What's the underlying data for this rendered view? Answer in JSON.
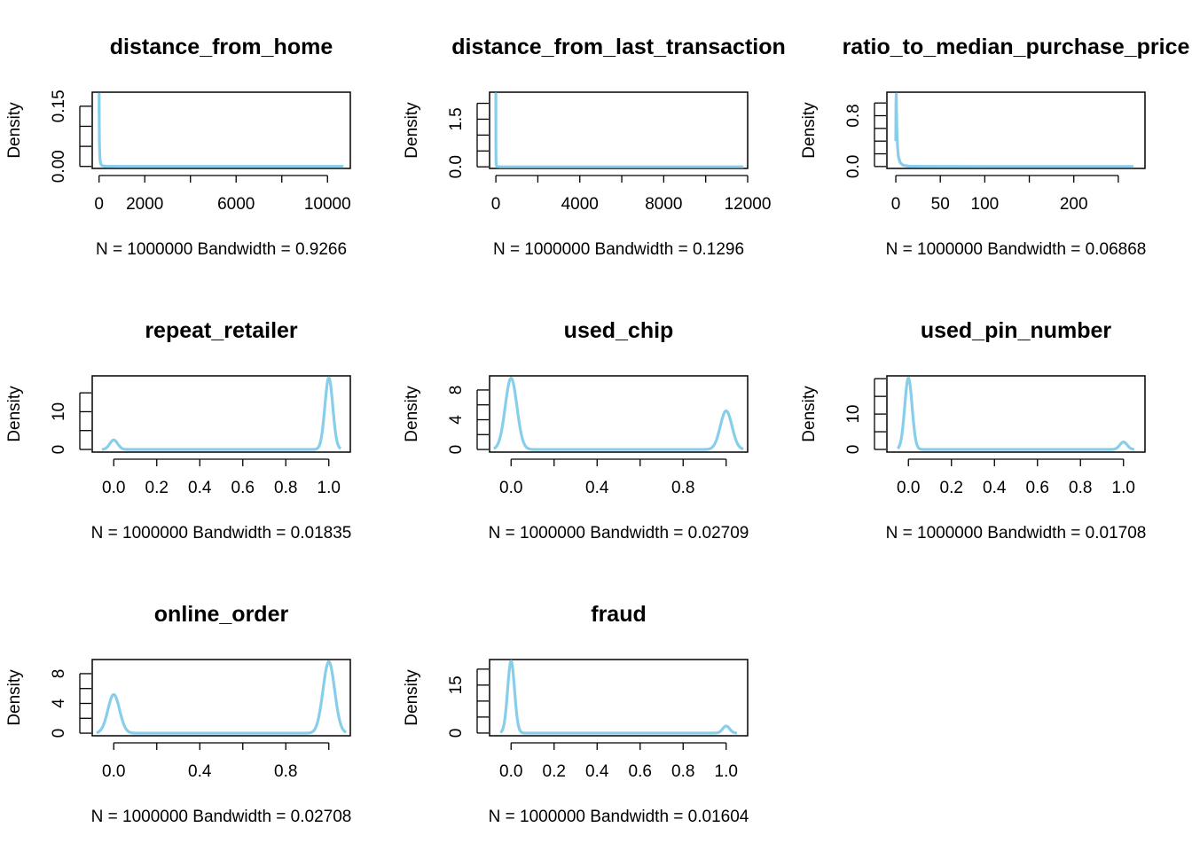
{
  "figure": {
    "curve_color": "#87CEEB",
    "panel_layout": "3x3 grid, 8 panels filled row-wise"
  },
  "chart_data": [
    {
      "type": "line",
      "title": "distance_from_home",
      "xlabel": "N = 1000000   Bandwidth = 0.9266",
      "ylabel": "Density",
      "xlim": [
        -300,
        11000
      ],
      "ylim": [
        -0.005,
        0.185
      ],
      "xticks": [
        0,
        2000,
        4000,
        6000,
        8000,
        10000
      ],
      "xtick_labels": [
        "0",
        "2000",
        "",
        "6000",
        "",
        "10000"
      ],
      "yticks": [
        0,
        0.05,
        0.1,
        0.15
      ],
      "ytick_labels": [
        "0.00",
        "",
        "",
        "0.15"
      ],
      "x": [
        0,
        2,
        4,
        8,
        15,
        25,
        40,
        70,
        120,
        300,
        1000,
        5000,
        10700
      ],
      "y": [
        0.13,
        0.18,
        0.17,
        0.11,
        0.06,
        0.035,
        0.018,
        0.007,
        0.002,
        0.0004,
        0,
        0,
        0
      ]
    },
    {
      "type": "line",
      "title": "distance_from_last_transaction",
      "xlabel": "N = 1000000   Bandwidth = 0.1296",
      "ylabel": "Density",
      "xlim": [
        -300,
        12000
      ],
      "ylim": [
        -0.05,
        2.35
      ],
      "xticks": [
        0,
        2000,
        4000,
        6000,
        8000,
        10000,
        12000
      ],
      "xtick_labels": [
        "0",
        "",
        "4000",
        "",
        "8000",
        "",
        "12000"
      ],
      "yticks": [
        0,
        0.5,
        1,
        1.5,
        2
      ],
      "ytick_labels": [
        "0.0",
        "",
        "",
        "1.5",
        ""
      ],
      "x": [
        0,
        0.3,
        0.6,
        1,
        2,
        4,
        8,
        15,
        40,
        200,
        2000,
        8000,
        11800
      ],
      "y": [
        1.8,
        2.3,
        2.2,
        1.6,
        0.9,
        0.45,
        0.2,
        0.07,
        0.01,
        0.001,
        0,
        0,
        0
      ]
    },
    {
      "type": "line",
      "title": "ratio_to_median_purchase_price",
      "xlabel": "N = 1000000   Bandwidth = 0.06868",
      "ylabel": "Density",
      "xlim": [
        -10,
        280
      ],
      "ylim": [
        -0.03,
        1.17
      ],
      "xticks": [
        0,
        50,
        100,
        150,
        200,
        250
      ],
      "xtick_labels": [
        "0",
        "50",
        "100",
        "",
        "200",
        ""
      ],
      "yticks": [
        0,
        0.2,
        0.4,
        0.6,
        0.8,
        1.0
      ],
      "ytick_labels": [
        "0.0",
        "",
        "",
        "",
        "0.8",
        ""
      ],
      "x": [
        0,
        0.2,
        0.5,
        0.8,
        1.2,
        2,
        3,
        5,
        8,
        15,
        30,
        100,
        267
      ],
      "y": [
        0.4,
        1.0,
        1.14,
        0.9,
        0.6,
        0.3,
        0.15,
        0.06,
        0.02,
        0.005,
        0.001,
        0,
        0
      ]
    },
    {
      "type": "line",
      "title": "repeat_retailer",
      "xlabel": "N = 1000000   Bandwidth = 0.01835",
      "ylabel": "Density",
      "xlim": [
        -0.1,
        1.1
      ],
      "ylim": [
        -0.7,
        19.5
      ],
      "xticks": [
        0,
        0.2,
        0.4,
        0.6,
        0.8,
        1.0
      ],
      "xtick_labels": [
        "0.0",
        "0.2",
        "0.4",
        "0.6",
        "0.8",
        "1.0"
      ],
      "yticks": [
        0,
        5,
        10,
        15
      ],
      "ytick_labels": [
        "0",
        "",
        "10",
        ""
      ],
      "peaks": [
        {
          "center": 0,
          "height": 2.5,
          "sigma": 0.01835
        },
        {
          "center": 1,
          "height": 19.0,
          "sigma": 0.01835
        }
      ],
      "x_range": [
        -0.055,
        1.055
      ]
    },
    {
      "type": "line",
      "title": "used_chip",
      "xlabel": "N = 1000000   Bandwidth = 0.02709",
      "ylabel": "Density",
      "xlim": [
        -0.1,
        1.1
      ],
      "ylim": [
        -0.35,
        9.9
      ],
      "xticks": [
        0,
        0.2,
        0.4,
        0.6,
        0.8,
        1.0
      ],
      "xtick_labels": [
        "0.0",
        "",
        "0.4",
        "",
        "0.8",
        ""
      ],
      "yticks": [
        0,
        2,
        4,
        6,
        8
      ],
      "ytick_labels": [
        "0",
        "",
        "4",
        "",
        "8"
      ],
      "peaks": [
        {
          "center": 0,
          "height": 9.6,
          "sigma": 0.02709
        },
        {
          "center": 1,
          "height": 5.2,
          "sigma": 0.02709
        }
      ],
      "x_range": [
        -0.08,
        1.08
      ]
    },
    {
      "type": "line",
      "title": "used_pin_number",
      "xlabel": "N = 1000000   Bandwidth = 0.01708",
      "ylabel": "Density",
      "xlim": [
        -0.1,
        1.1
      ],
      "ylim": [
        -0.75,
        20.8
      ],
      "xticks": [
        0,
        0.2,
        0.4,
        0.6,
        0.8,
        1.0
      ],
      "xtick_labels": [
        "0.0",
        "0.2",
        "0.4",
        "0.6",
        "0.8",
        "1.0"
      ],
      "yticks": [
        0,
        5,
        10,
        15,
        20
      ],
      "ytick_labels": [
        "0",
        "",
        "10",
        "",
        ""
      ],
      "peaks": [
        {
          "center": 0,
          "height": 20.2,
          "sigma": 0.01708
        },
        {
          "center": 1,
          "height": 2.1,
          "sigma": 0.01708
        }
      ],
      "x_range": [
        -0.05,
        1.05
      ]
    },
    {
      "type": "line",
      "title": "online_order",
      "xlabel": "N = 1000000   Bandwidth = 0.02708",
      "ylabel": "Density",
      "xlim": [
        -0.1,
        1.1
      ],
      "ylim": [
        -0.35,
        9.9
      ],
      "xticks": [
        0,
        0.2,
        0.4,
        0.6,
        0.8,
        1.0
      ],
      "xtick_labels": [
        "0.0",
        "",
        "0.4",
        "",
        "0.8",
        ""
      ],
      "yticks": [
        0,
        2,
        4,
        6,
        8
      ],
      "ytick_labels": [
        "0",
        "",
        "4",
        "",
        "8"
      ],
      "peaks": [
        {
          "center": 0,
          "height": 5.2,
          "sigma": 0.02708
        },
        {
          "center": 1,
          "height": 9.6,
          "sigma": 0.02708
        }
      ],
      "x_range": [
        -0.08,
        1.08
      ]
    },
    {
      "type": "line",
      "title": "fraud",
      "xlabel": "N = 1000000   Bandwidth = 0.01604",
      "ylabel": "Density",
      "xlim": [
        -0.1,
        1.1
      ],
      "ylim": [
        -0.85,
        23.0
      ],
      "xticks": [
        0,
        0.2,
        0.4,
        0.6,
        0.8,
        1.0
      ],
      "xtick_labels": [
        "0.0",
        "0.2",
        "0.4",
        "0.6",
        "0.8",
        "1.0"
      ],
      "yticks": [
        0,
        5,
        10,
        15,
        20
      ],
      "ytick_labels": [
        "0",
        "",
        "",
        "15",
        ""
      ],
      "peaks": [
        {
          "center": 0,
          "height": 22.5,
          "sigma": 0.01604
        },
        {
          "center": 1,
          "height": 2.2,
          "sigma": 0.01604
        }
      ],
      "x_range": [
        -0.05,
        1.05
      ]
    }
  ]
}
